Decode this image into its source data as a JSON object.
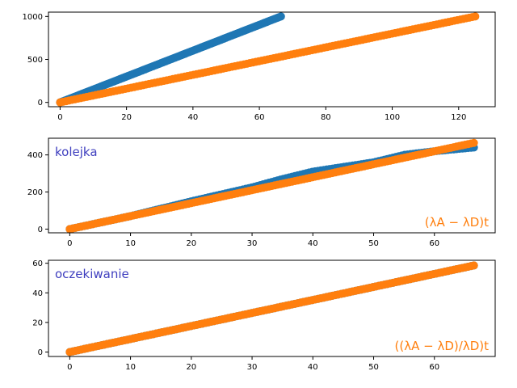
{
  "colors": {
    "series_1": "#1f77b4",
    "series_2": "#ff7f0e",
    "annotation_left": "#3f3fbf",
    "annotation_right": "#ff7f0e"
  },
  "chart_data": [
    {
      "type": "scatter",
      "title": "",
      "xlabel": "",
      "ylabel": "",
      "xlim": [
        -3.5,
        131
      ],
      "ylim": [
        -50,
        1050
      ],
      "xticks": [
        "0",
        "20",
        "40",
        "60",
        "80",
        "100",
        "120"
      ],
      "yticks": [
        "0",
        "500",
        "1000"
      ],
      "series": [
        {
          "color": "#1f77b4",
          "x": [
            0,
            66.5
          ],
          "y": [
            0,
            1000
          ]
        },
        {
          "color": "#ff7f0e",
          "x": [
            0,
            125
          ],
          "y": [
            0,
            1000
          ]
        }
      ],
      "annotations": {
        "left": "",
        "right": ""
      }
    },
    {
      "type": "scatter",
      "title": "",
      "xlabel": "",
      "ylabel": "",
      "xlim": [
        -3.5,
        70
      ],
      "ylim": [
        -20,
        490
      ],
      "xticks": [
        "0",
        "10",
        "20",
        "30",
        "40",
        "50",
        "60"
      ],
      "yticks": [
        "0",
        "200",
        "400"
      ],
      "series": [
        {
          "color": "#1f77b4",
          "x": [
            0,
            10,
            20,
            30,
            35,
            40,
            50,
            55,
            60,
            66.5
          ],
          "y": [
            0,
            70,
            150,
            225,
            270,
            310,
            360,
            400,
            420,
            440
          ]
        },
        {
          "color": "#ff7f0e",
          "x": [
            0,
            66.5
          ],
          "y": [
            0,
            465
          ]
        }
      ],
      "annotations": {
        "left": "kolejka",
        "right": "(λA − λD)t"
      }
    },
    {
      "type": "scatter",
      "title": "",
      "xlabel": "",
      "ylabel": "",
      "xlim": [
        -3.5,
        70
      ],
      "ylim": [
        -3,
        62
      ],
      "xticks": [
        "0",
        "10",
        "20",
        "30",
        "40",
        "50",
        "60"
      ],
      "yticks": [
        "0",
        "20",
        "40",
        "60"
      ],
      "series": [
        {
          "color": "#1f77b4",
          "x": [
            0,
            66.5
          ],
          "y": [
            0,
            58.5
          ]
        },
        {
          "color": "#ff7f0e",
          "x": [
            0,
            66.5
          ],
          "y": [
            0,
            58.5
          ]
        }
      ],
      "annotations": {
        "left": "oczekiwanie",
        "right": "((λA − λD)/λD)t"
      }
    }
  ]
}
